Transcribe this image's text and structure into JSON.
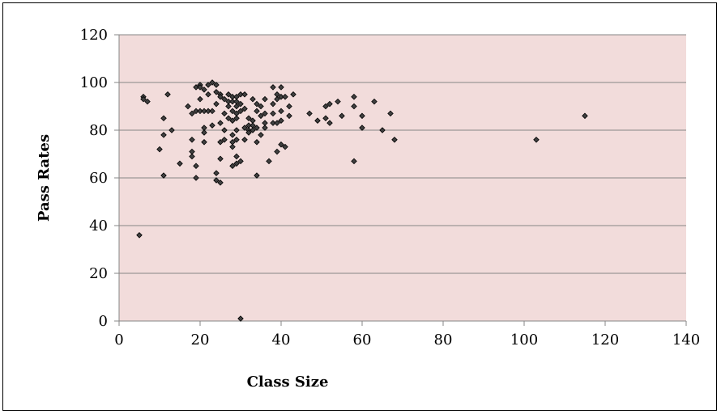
{
  "chart_data": {
    "type": "scatter",
    "title": "",
    "xlabel": "Class Size",
    "ylabel": "Pass Rates",
    "xlim": [
      0,
      140
    ],
    "ylim": [
      0,
      120
    ],
    "x_ticks": [
      0,
      20,
      40,
      60,
      80,
      100,
      120,
      140
    ],
    "y_ticks": [
      0,
      20,
      40,
      60,
      80,
      100,
      120
    ],
    "grid": "horizontal",
    "legend": "none",
    "colors": {
      "plot_background": "#f2dcdb",
      "gridline": "#868686",
      "marker": "#000000",
      "marker_fill": "#404040"
    },
    "marker": "diamond",
    "points": [
      [
        5,
        36
      ],
      [
        6,
        94
      ],
      [
        6,
        93
      ],
      [
        7,
        92
      ],
      [
        10,
        72
      ],
      [
        11,
        85
      ],
      [
        11,
        78
      ],
      [
        11,
        61
      ],
      [
        12,
        95
      ],
      [
        13,
        80
      ],
      [
        15,
        66
      ],
      [
        17,
        90
      ],
      [
        18,
        87
      ],
      [
        18,
        76
      ],
      [
        18,
        71
      ],
      [
        18,
        69
      ],
      [
        19,
        65
      ],
      [
        19,
        60
      ],
      [
        19,
        88
      ],
      [
        19,
        98
      ],
      [
        20,
        99
      ],
      [
        20,
        88
      ],
      [
        20,
        98
      ],
      [
        20,
        93
      ],
      [
        21,
        97
      ],
      [
        21,
        88
      ],
      [
        21,
        81
      ],
      [
        21,
        79
      ],
      [
        21,
        75
      ],
      [
        22,
        99
      ],
      [
        22,
        95
      ],
      [
        22,
        88
      ],
      [
        23,
        100
      ],
      [
        23,
        88
      ],
      [
        23,
        82
      ],
      [
        24,
        99
      ],
      [
        24,
        96
      ],
      [
        24,
        91
      ],
      [
        24,
        62
      ],
      [
        24,
        59
      ],
      [
        25,
        95
      ],
      [
        25,
        94
      ],
      [
        25,
        83
      ],
      [
        25,
        75
      ],
      [
        25,
        68
      ],
      [
        25,
        58
      ],
      [
        26,
        93
      ],
      [
        26,
        87
      ],
      [
        26,
        80
      ],
      [
        26,
        76
      ],
      [
        27,
        95
      ],
      [
        27,
        92
      ],
      [
        27,
        90
      ],
      [
        27,
        85
      ],
      [
        28,
        94
      ],
      [
        28,
        92
      ],
      [
        28,
        88
      ],
      [
        28,
        84
      ],
      [
        28,
        78
      ],
      [
        28,
        75
      ],
      [
        28,
        73
      ],
      [
        28,
        65
      ],
      [
        29,
        94
      ],
      [
        29,
        92
      ],
      [
        29,
        90
      ],
      [
        29,
        87
      ],
      [
        29,
        85
      ],
      [
        29,
        80
      ],
      [
        29,
        76
      ],
      [
        29,
        69
      ],
      [
        29,
        66
      ],
      [
        30,
        95
      ],
      [
        30,
        91
      ],
      [
        30,
        88
      ],
      [
        30,
        67
      ],
      [
        30,
        1
      ],
      [
        31,
        95
      ],
      [
        31,
        89
      ],
      [
        31,
        81
      ],
      [
        31,
        76
      ],
      [
        32,
        85
      ],
      [
        32,
        82
      ],
      [
        32,
        80
      ],
      [
        32,
        79
      ],
      [
        33,
        93
      ],
      [
        33,
        84
      ],
      [
        33,
        82
      ],
      [
        33,
        80
      ],
      [
        34,
        91
      ],
      [
        34,
        88
      ],
      [
        34,
        81
      ],
      [
        34,
        75
      ],
      [
        34,
        61
      ],
      [
        35,
        90
      ],
      [
        35,
        86
      ],
      [
        35,
        78
      ],
      [
        36,
        93
      ],
      [
        36,
        87
      ],
      [
        36,
        83
      ],
      [
        36,
        81
      ],
      [
        37,
        67
      ],
      [
        38,
        98
      ],
      [
        38,
        91
      ],
      [
        38,
        87
      ],
      [
        38,
        83
      ],
      [
        39,
        95
      ],
      [
        39,
        93
      ],
      [
        39,
        83
      ],
      [
        39,
        71
      ],
      [
        40,
        98
      ],
      [
        40,
        94
      ],
      [
        40,
        88
      ],
      [
        40,
        84
      ],
      [
        40,
        74
      ],
      [
        41,
        94
      ],
      [
        41,
        73
      ],
      [
        42,
        90
      ],
      [
        42,
        86
      ],
      [
        43,
        95
      ],
      [
        47,
        87
      ],
      [
        49,
        84
      ],
      [
        51,
        90
      ],
      [
        51,
        85
      ],
      [
        52,
        91
      ],
      [
        52,
        83
      ],
      [
        54,
        92
      ],
      [
        55,
        86
      ],
      [
        58,
        94
      ],
      [
        58,
        90
      ],
      [
        58,
        67
      ],
      [
        60,
        86
      ],
      [
        60,
        81
      ],
      [
        63,
        92
      ],
      [
        65,
        80
      ],
      [
        67,
        87
      ],
      [
        68,
        76
      ],
      [
        103,
        76
      ],
      [
        115,
        86
      ]
    ]
  }
}
